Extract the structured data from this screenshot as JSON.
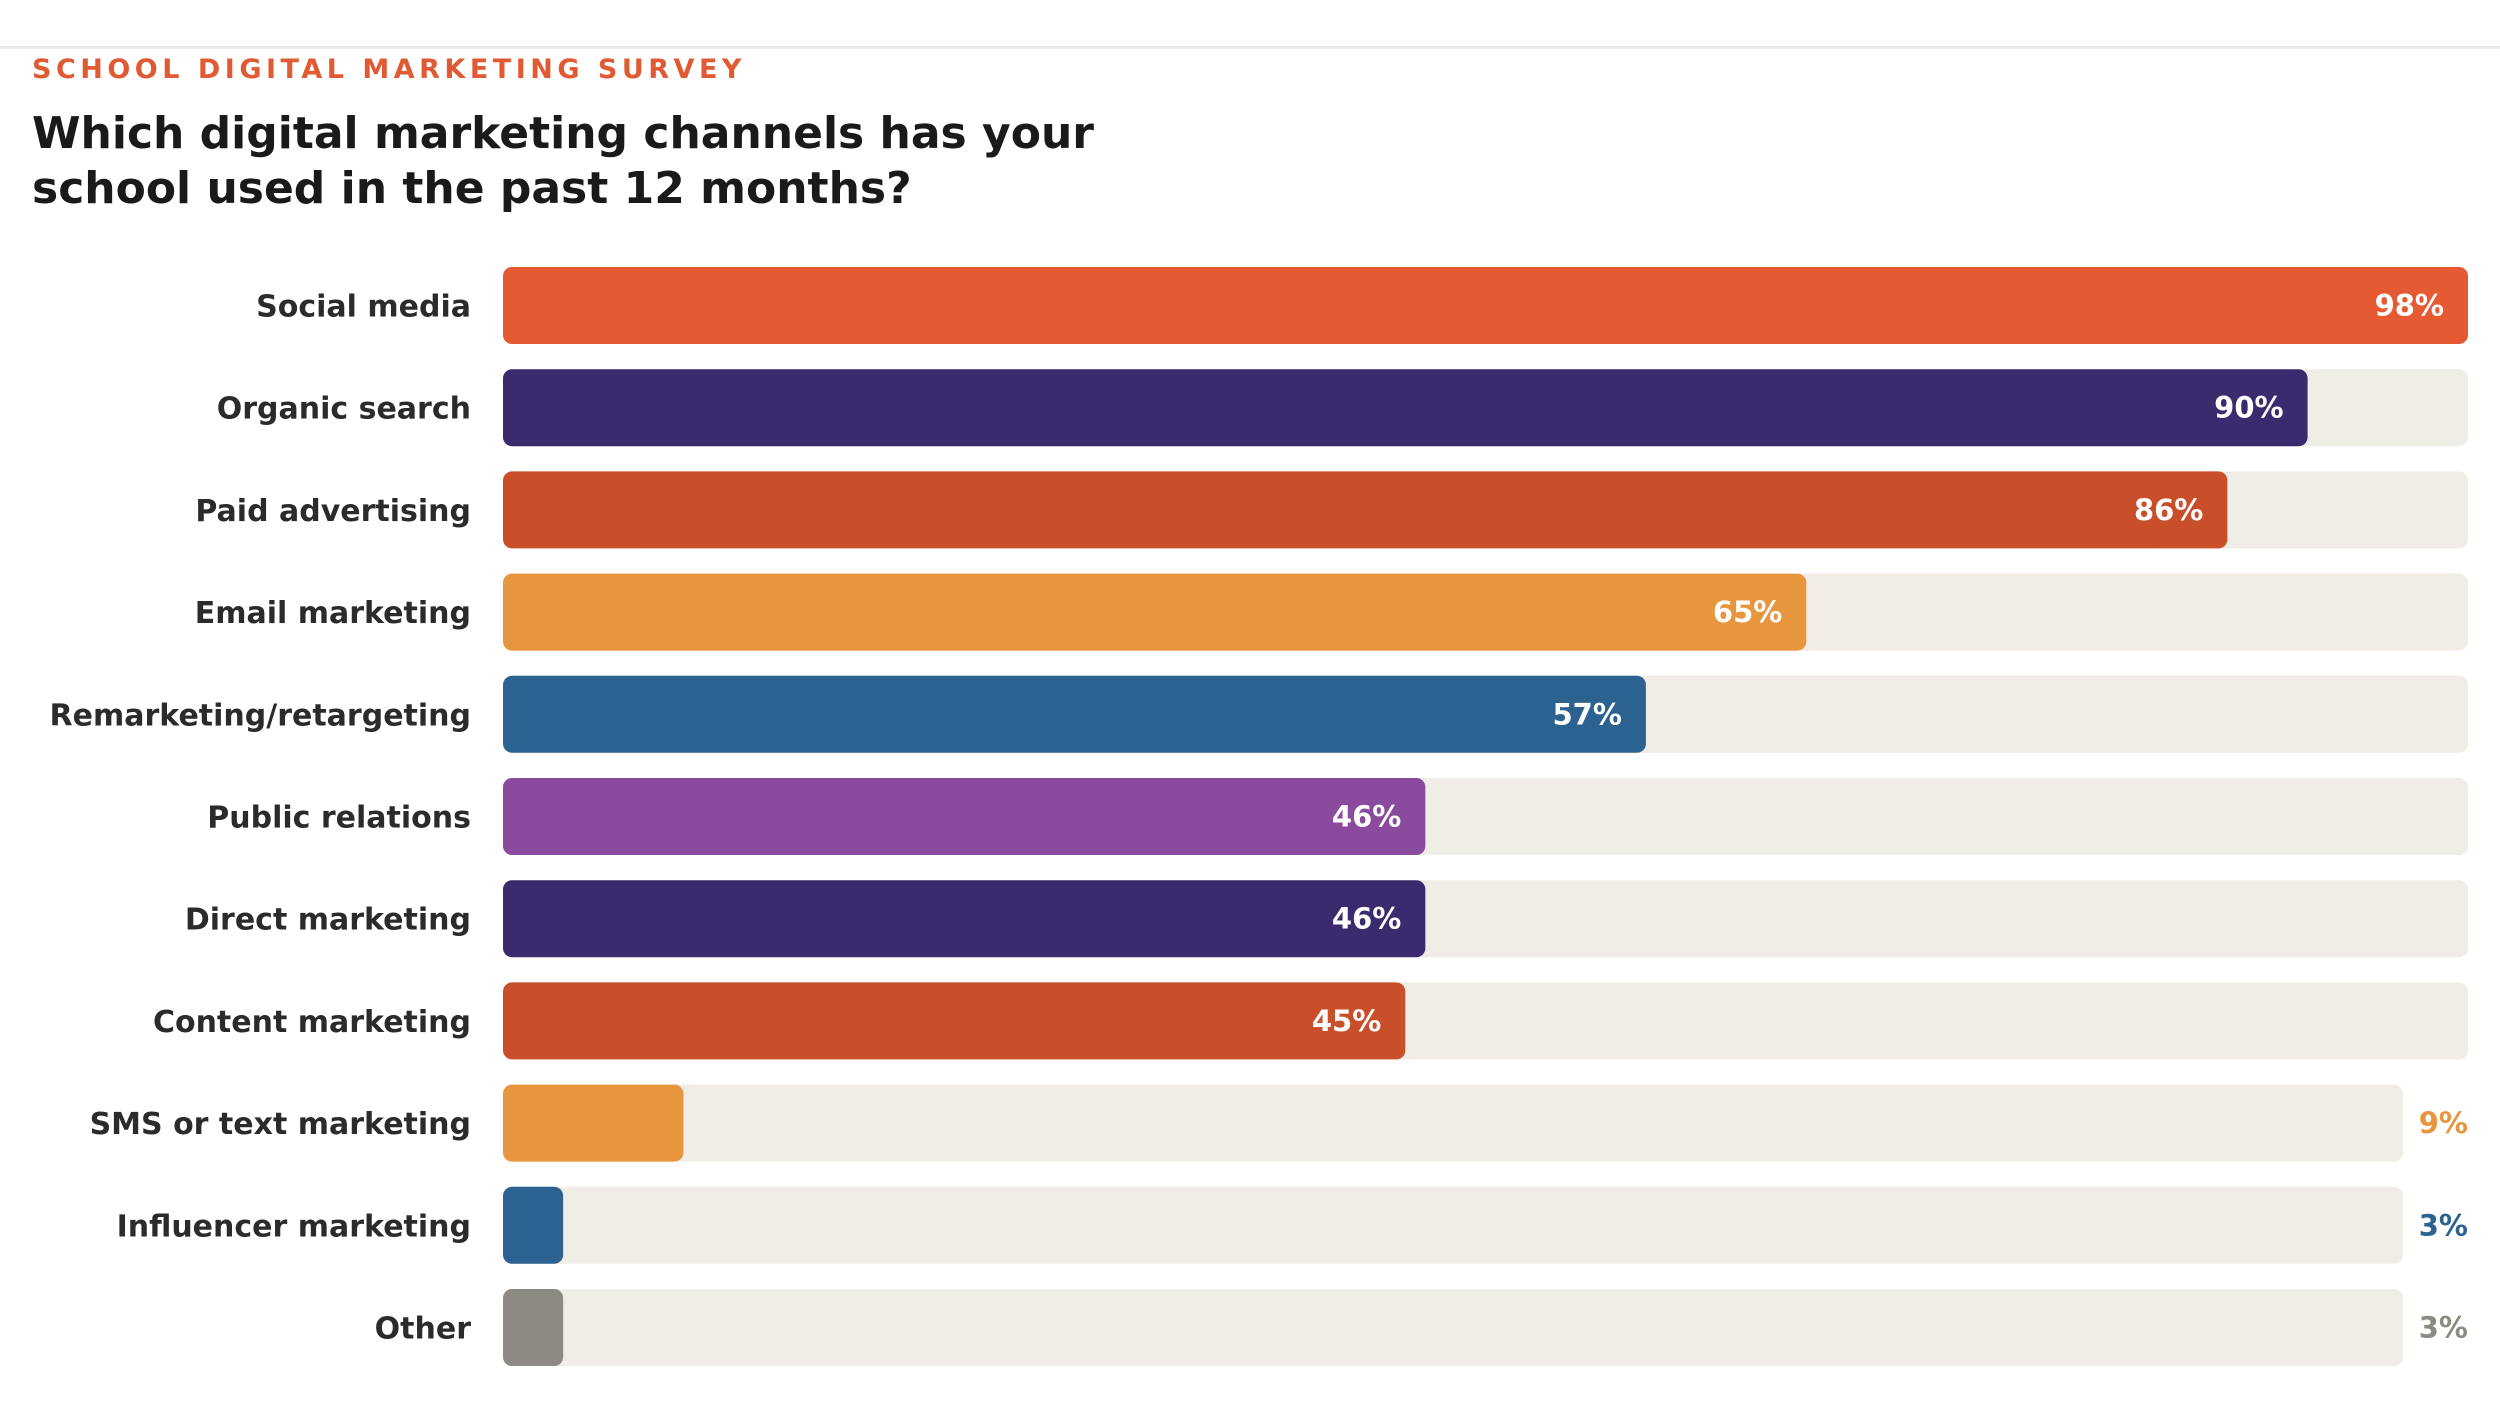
{
  "header": {
    "eyebrow": "SCHOOL DIGITAL MARKETING SURVEY",
    "title": "Which digital marketing channels has your school used in the past 12 months?"
  },
  "colors": {
    "track": "#f0ece6",
    "label_inside": "#ffffff"
  },
  "chart_data": {
    "type": "bar",
    "orientation": "horizontal",
    "title": "Which digital marketing channels has your school used in the past 12 months?",
    "xlabel": "",
    "ylabel": "",
    "xlim": [
      0,
      100
    ],
    "grid": false,
    "legend": "none",
    "categories": [
      "Social media",
      "Organic search",
      "Paid advertising",
      "Email marketing",
      "Remarketing/retargeting",
      "Public relations",
      "Direct marketing",
      "Content marketing",
      "SMS or text marketing",
      "Influencer marketing",
      "Other"
    ],
    "values": [
      98,
      90,
      86,
      65,
      57,
      46,
      46,
      45,
      9,
      3,
      3
    ],
    "value_labels": [
      "98%",
      "90%",
      "86%",
      "65%",
      "57%",
      "46%",
      "46%",
      "45%",
      "9%",
      "3%",
      "3%"
    ],
    "bar_colors": [
      "#e55a33",
      "#3c2a6e",
      "#c94f2a",
      "#e8963e",
      "#2c6290",
      "#8a4a9e",
      "#3c2a6e",
      "#c94f2a",
      "#e8963e",
      "#2c6290",
      "#8c8a82"
    ]
  }
}
